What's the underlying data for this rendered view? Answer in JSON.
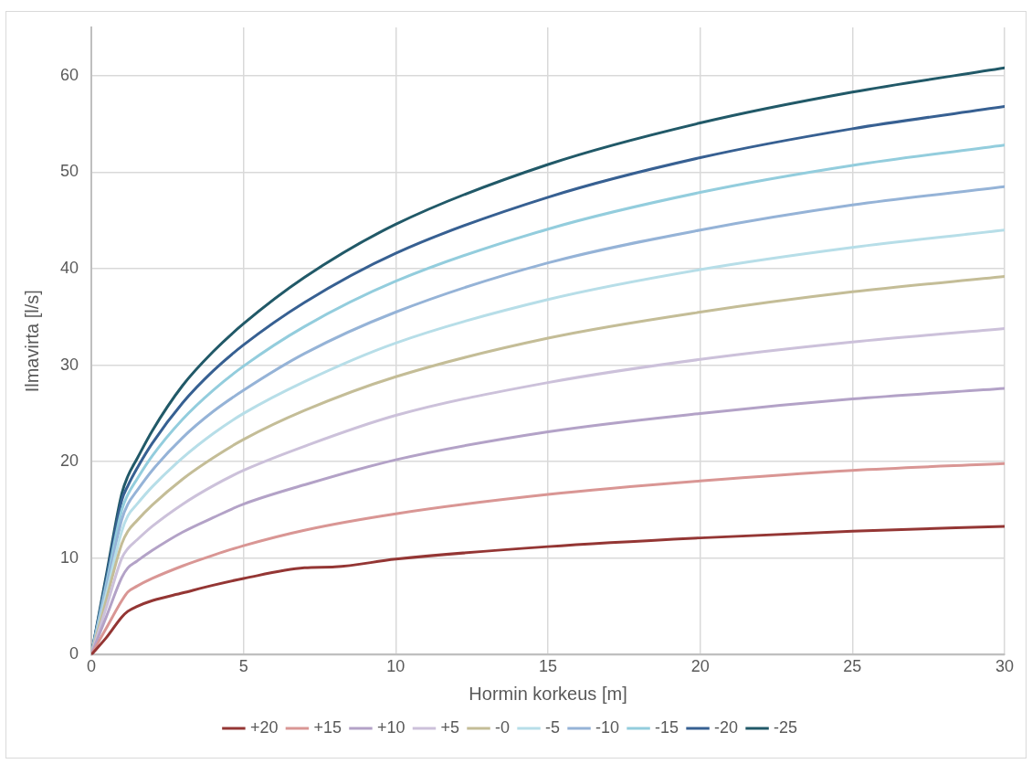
{
  "chart_data": {
    "type": "line",
    "xlabel": "Hormin korkeus [m]",
    "ylabel": "Ilmavirta [l/s]",
    "x": [
      0,
      0.5,
      1,
      1.2,
      1.5,
      2,
      3,
      4,
      5,
      7,
      10,
      15,
      20,
      25,
      30
    ],
    "series": [
      {
        "name": "+20",
        "color": "#943634",
        "x": [
          0,
          0.5,
          1,
          1.2,
          1.5,
          2,
          3,
          4,
          5,
          7,
          8,
          10,
          15,
          20,
          25,
          30
        ],
        "values": [
          0,
          1.8,
          3.9,
          4.5,
          5.0,
          5.6,
          6.4,
          7.2,
          7.9,
          9.0,
          9.1,
          9.9,
          11.2,
          12.1,
          12.8,
          13.3
        ]
      },
      {
        "name": "+15",
        "color": "#d99694",
        "values": [
          0,
          2.8,
          5.6,
          6.5,
          7.1,
          7.9,
          9.2,
          10.3,
          11.3,
          12.9,
          14.6,
          16.6,
          18.0,
          19.1,
          19.8
        ]
      },
      {
        "name": "+10",
        "color": "#b3a2c7",
        "values": [
          0,
          4.0,
          8.0,
          9.0,
          9.7,
          10.8,
          12.7,
          14.2,
          15.6,
          17.6,
          20.2,
          23.1,
          25.0,
          26.5,
          27.6
        ]
      },
      {
        "name": "+5",
        "color": "#ccc1da",
        "values": [
          0,
          5.0,
          10.0,
          11.0,
          11.9,
          13.3,
          15.6,
          17.5,
          19.1,
          21.6,
          24.8,
          28.2,
          30.6,
          32.4,
          33.8
        ]
      },
      {
        "name": "-0",
        "color": "#c4bd97",
        "values": [
          0,
          5.8,
          11.5,
          12.8,
          13.9,
          15.5,
          18.2,
          20.4,
          22.3,
          25.3,
          28.8,
          32.8,
          35.5,
          37.6,
          39.2
        ]
      },
      {
        "name": "-5",
        "color": "#b7dee8",
        "values": [
          0,
          6.4,
          12.8,
          14.4,
          15.6,
          17.4,
          20.4,
          22.9,
          25.0,
          28.3,
          32.3,
          36.8,
          39.9,
          42.2,
          44.0
        ]
      },
      {
        "name": "-10",
        "color": "#95b3d7",
        "values": [
          0,
          7.0,
          14.0,
          15.6,
          17.0,
          19.1,
          22.5,
          25.2,
          27.4,
          31.2,
          35.5,
          40.6,
          44.0,
          46.6,
          48.5
        ]
      },
      {
        "name": "-15",
        "color": "#93cddd",
        "values": [
          0,
          7.5,
          15.0,
          16.6,
          18.2,
          20.6,
          24.4,
          27.4,
          29.9,
          34.0,
          38.7,
          44.1,
          47.9,
          50.7,
          52.8
        ]
      },
      {
        "name": "-20",
        "color": "#376092",
        "values": [
          0,
          8.0,
          16.0,
          17.5,
          19.3,
          21.9,
          26.1,
          29.4,
          32.1,
          36.5,
          41.6,
          47.4,
          51.5,
          54.5,
          56.8
        ]
      },
      {
        "name": "-25",
        "color": "#215968",
        "values": [
          0,
          8.4,
          16.7,
          18.5,
          20.3,
          23.2,
          27.9,
          31.4,
          34.3,
          39.1,
          44.6,
          50.8,
          55.1,
          58.3,
          60.8
        ]
      }
    ],
    "xlim": [
      0,
      30
    ],
    "xticks": [
      0,
      5,
      10,
      15,
      20,
      25,
      30
    ],
    "ylim": [
      0,
      65
    ],
    "yticks": [
      0,
      10,
      20,
      30,
      40,
      50,
      60
    ],
    "grid": true,
    "legend": "bottom",
    "marker": "none",
    "line_style": "solid"
  }
}
